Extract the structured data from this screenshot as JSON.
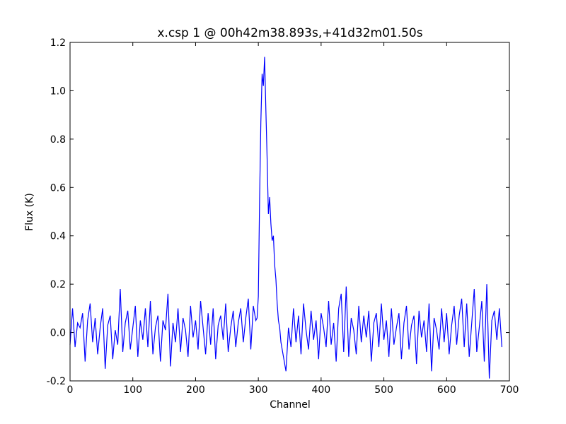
{
  "chart_data": {
    "type": "line",
    "title": "x.csp 1 @ 00h42m38.893s,+41d32m01.50s",
    "xlabel": "Channel",
    "ylabel": "Flux (K)",
    "xlim": [
      0,
      700
    ],
    "ylim": [
      -0.2,
      1.2
    ],
    "xticks": [
      0,
      100,
      200,
      300,
      400,
      500,
      600,
      700
    ],
    "yticks": [
      -0.2,
      {
        "value": 0,
        "label": "0.0"
      },
      0.2,
      0.4,
      0.6,
      0.8,
      {
        "value": 1,
        "label": "1.0"
      },
      1.2
    ],
    "series": [
      {
        "color": "#0000ff",
        "x": [
          0,
          4,
          8,
          12,
          16,
          20,
          24,
          28,
          32,
          36,
          40,
          44,
          48,
          52,
          56,
          60,
          64,
          68,
          72,
          76,
          80,
          84,
          88,
          92,
          96,
          100,
          104,
          108,
          112,
          116,
          120,
          124,
          128,
          132,
          136,
          140,
          144,
          148,
          152,
          156,
          160,
          164,
          168,
          172,
          176,
          180,
          184,
          188,
          192,
          196,
          200,
          204,
          208,
          212,
          216,
          220,
          224,
          228,
          232,
          236,
          240,
          244,
          248,
          252,
          256,
          260,
          264,
          268,
          272,
          276,
          280,
          284,
          288,
          292,
          296,
          298,
          300,
          302,
          304,
          306,
          308,
          310,
          312,
          314,
          316,
          318,
          320,
          322,
          324,
          326,
          328,
          330,
          332,
          334,
          336,
          340,
          344,
          348,
          352,
          356,
          360,
          364,
          368,
          372,
          376,
          380,
          384,
          388,
          392,
          396,
          400,
          404,
          408,
          412,
          416,
          420,
          424,
          428,
          432,
          436,
          440,
          444,
          448,
          452,
          456,
          460,
          464,
          468,
          472,
          476,
          480,
          484,
          488,
          492,
          496,
          500,
          504,
          508,
          512,
          516,
          520,
          524,
          528,
          532,
          536,
          540,
          544,
          548,
          552,
          556,
          560,
          564,
          568,
          572,
          576,
          580,
          584,
          588,
          592,
          596,
          600,
          604,
          608,
          612,
          616,
          620,
          624,
          628,
          632,
          636,
          640,
          644,
          648,
          652,
          656,
          660,
          664,
          668,
          672,
          676,
          680,
          684,
          688
        ],
        "values": [
          -0.05,
          0.1,
          -0.06,
          0.04,
          0.02,
          0.08,
          -0.12,
          0.05,
          0.12,
          -0.04,
          0.06,
          -0.09,
          0.02,
          0.1,
          -0.15,
          0.03,
          0.07,
          -0.11,
          0.01,
          -0.05,
          0.18,
          -0.08,
          0.04,
          0.09,
          -0.07,
          0.02,
          0.11,
          -0.1,
          0.05,
          -0.03,
          0.1,
          -0.06,
          0.13,
          -0.09,
          0.02,
          0.07,
          -0.12,
          0.05,
          0.01,
          0.16,
          -0.14,
          0.04,
          -0.04,
          0.1,
          -0.08,
          0.06,
          0.01,
          -0.1,
          0.11,
          -0.02,
          0.05,
          -0.07,
          0.13,
          0.02,
          -0.09,
          0.08,
          -0.05,
          0.1,
          -0.11,
          0.03,
          0.07,
          -0.03,
          0.12,
          -0.08,
          0.02,
          0.09,
          -0.06,
          0.04,
          0.1,
          -0.04,
          0.06,
          0.14,
          -0.07,
          0.11,
          0.05,
          0.06,
          0.15,
          0.55,
          0.87,
          1.07,
          1.02,
          1.14,
          0.92,
          0.72,
          0.49,
          0.56,
          0.45,
          0.38,
          0.4,
          0.28,
          0.22,
          0.12,
          0.05,
          0.02,
          -0.04,
          -0.1,
          -0.16,
          0.02,
          -0.06,
          0.1,
          -0.04,
          0.07,
          -0.09,
          0.12,
          0.01,
          -0.07,
          0.09,
          -0.03,
          0.05,
          -0.11,
          0.08,
          0.02,
          -0.06,
          0.13,
          -0.05,
          0.04,
          -0.12,
          0.1,
          0.16,
          -0.08,
          0.19,
          -0.1,
          0.06,
          0.01,
          -0.09,
          0.11,
          -0.04,
          0.07,
          -0.02,
          0.09,
          -0.12,
          0.04,
          0.08,
          -0.06,
          0.12,
          -0.03,
          0.05,
          -0.1,
          0.1,
          -0.05,
          0.02,
          0.08,
          -0.11,
          0.04,
          0.11,
          -0.07,
          0.03,
          0.07,
          -0.13,
          0.09,
          -0.02,
          0.05,
          -0.08,
          0.12,
          -0.16,
          0.06,
          0.01,
          -0.07,
          0.1,
          -0.04,
          0.08,
          -0.09,
          0.03,
          0.11,
          -0.05,
          0.07,
          0.14,
          -0.06,
          0.12,
          -0.1,
          0.04,
          0.18,
          -0.08,
          0.02,
          0.13,
          -0.12,
          0.2,
          -0.19,
          0.05,
          0.09,
          -0.03,
          0.1,
          -0.06
        ]
      }
    ]
  }
}
